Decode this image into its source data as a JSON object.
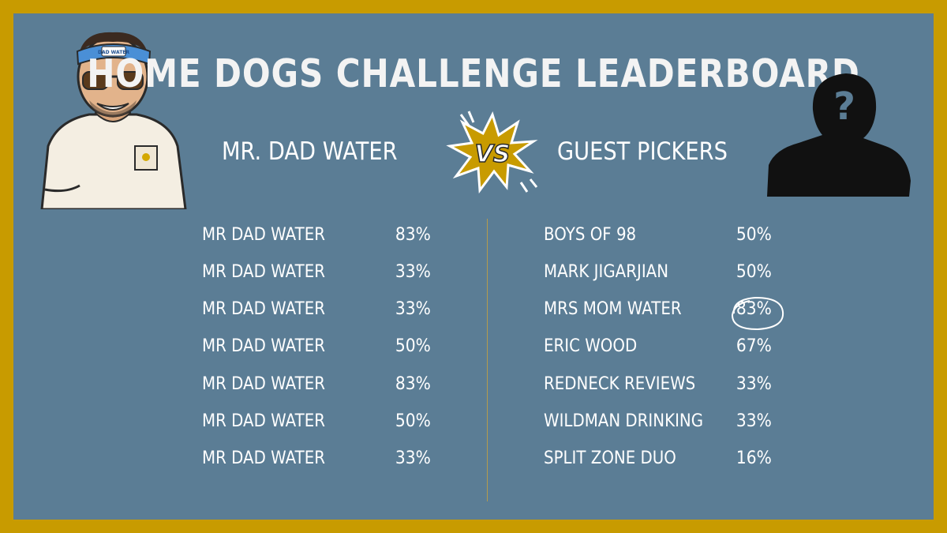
{
  "title": "HOME DOGS CHALLENGE LEADERBOARD",
  "left_heading": "MR. DAD WATER",
  "right_heading": "GUEST PICKERS",
  "vs_label": "VS",
  "headband_text": "DAD WATER",
  "left_rows": [
    {
      "name": "MR DAD WATER",
      "pct": "83%"
    },
    {
      "name": "MR DAD WATER",
      "pct": "33%"
    },
    {
      "name": "MR DAD WATER",
      "pct": "33%"
    },
    {
      "name": "MR DAD WATER",
      "pct": "50%"
    },
    {
      "name": "MR DAD WATER",
      "pct": "83%"
    },
    {
      "name": "MR DAD WATER",
      "pct": "50%"
    },
    {
      "name": "MR DAD WATER",
      "pct": "33%"
    }
  ],
  "right_rows": [
    {
      "name": "BOYS OF 98",
      "pct": "50%"
    },
    {
      "name": "MARK JIGARJIAN",
      "pct": "50%"
    },
    {
      "name": "MRS MOM WATER",
      "pct": "83%"
    },
    {
      "name": "ERIC WOOD",
      "pct": "67%"
    },
    {
      "name": "REDNECK REVIEWS",
      "pct": "33%"
    },
    {
      "name": "WILDMAN DRINKING",
      "pct": "33%"
    },
    {
      "name": "SPLIT ZONE DUO",
      "pct": "16%"
    }
  ],
  "colors": {
    "border": "#c89b00",
    "panel": "#5b7d95",
    "text": "#ffffff",
    "vs_burst": "#c89b00"
  },
  "icons": {
    "left_avatar": "cartoon-man-headband-avatar",
    "right_avatar": "mystery-silhouette-question-mark",
    "vs": "comic-burst-vs-icon"
  }
}
